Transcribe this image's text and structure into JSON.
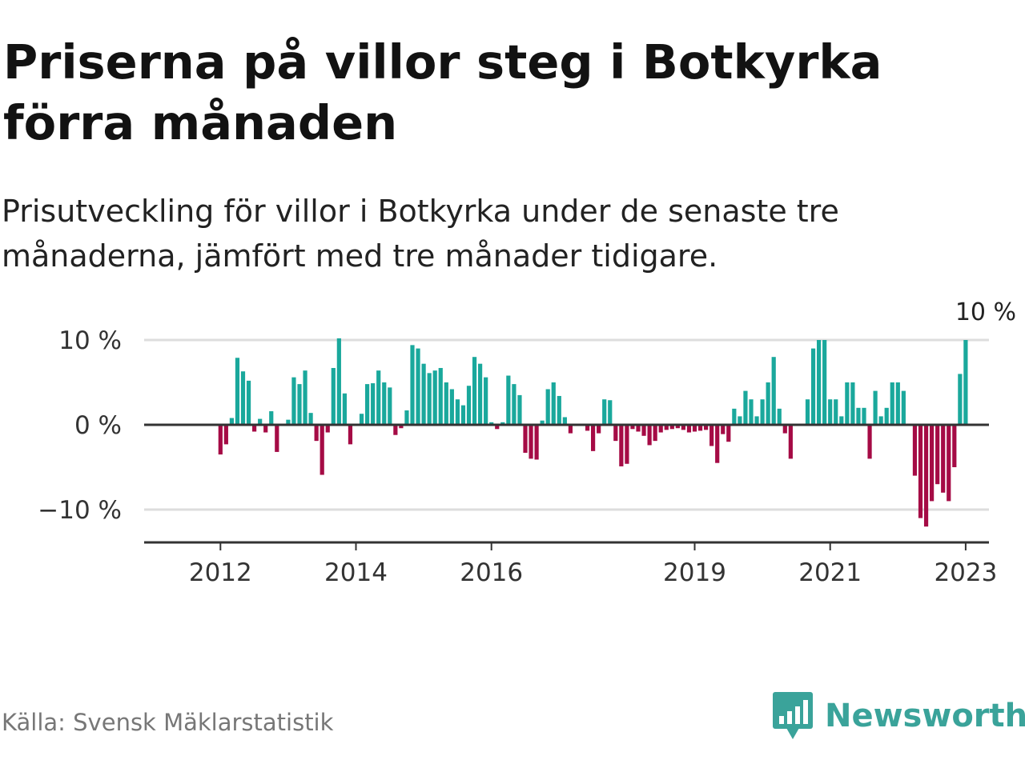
{
  "title": "Priserna på villor steg i Botkyrka förra månaden",
  "subtitle": "Prisutveckling för villor i Botkyrka under de senaste tre månaderna, jämfört med tre månader tidigare.",
  "source": "Källa: Svensk Mäklarstatistik",
  "brand": "Newsworthy",
  "colors": {
    "positive": "#1aa89c",
    "negative": "#a50b45",
    "grid": "#dddddd",
    "axis": "#333333",
    "brand": "#3aa39a"
  },
  "chart_data": {
    "type": "bar",
    "start": "2011-07",
    "ylim": [
      -14,
      11
    ],
    "yticks": [
      {
        "value": 10,
        "label": "10 %"
      },
      {
        "value": 0,
        "label": "0 %"
      },
      {
        "value": -10,
        "label": "−10 %"
      }
    ],
    "xticks": [
      {
        "index": 6,
        "label": "2012"
      },
      {
        "index": 30,
        "label": "2014"
      },
      {
        "index": 54,
        "label": "2016"
      },
      {
        "index": 90,
        "label": "2019"
      },
      {
        "index": 114,
        "label": "2021"
      },
      {
        "index": 138,
        "label": "2023"
      }
    ],
    "callout": {
      "index": 141,
      "label": "10 %"
    },
    "values": [
      0,
      0,
      0,
      0,
      0,
      0,
      -3.5,
      -2.3,
      0.8,
      7.9,
      6.3,
      5.2,
      -0.8,
      0.7,
      -0.9,
      1.6,
      -3.2,
      0,
      0.6,
      5.6,
      4.8,
      6.4,
      1.4,
      -1.9,
      -5.9,
      -0.9,
      6.7,
      10.2,
      3.7,
      -2.3,
      0,
      1.3,
      4.8,
      4.9,
      6.4,
      5.0,
      4.4,
      -1.2,
      -0.4,
      1.7,
      9.4,
      9.0,
      7.2,
      6.1,
      6.4,
      6.7,
      5.0,
      4.2,
      3.0,
      2.3,
      4.6,
      8.0,
      7.2,
      5.6,
      0.3,
      -0.5,
      0.3,
      5.8,
      4.8,
      3.5,
      -3.3,
      -4.0,
      -4.1,
      0.5,
      4.2,
      5.0,
      3.4,
      0.9,
      -1.0,
      0,
      0,
      -0.7,
      -3.1,
      -1.0,
      3.0,
      2.9,
      -1.9,
      -4.9,
      -4.6,
      -0.5,
      -0.8,
      -1.3,
      -2.4,
      -1.9,
      -0.9,
      -0.6,
      -0.5,
      -0.4,
      -0.6,
      -0.9,
      -0.8,
      -0.7,
      -0.6,
      -2.5,
      -4.5,
      -1.1,
      -2.0,
      1.9,
      1.0,
      4.0,
      3.0,
      1.0,
      3.0,
      5.0,
      8.0,
      1.9,
      -1.0,
      -4.0,
      0,
      0,
      3.0,
      9.0,
      10.0,
      10.0,
      3.0,
      3.0,
      1.0,
      5.0,
      5.0,
      2.0,
      2.0,
      -4.0,
      4.0,
      1.0,
      2.0,
      5.0,
      5.0,
      4.0,
      0,
      -6.0,
      -11.0,
      -12.0,
      -9.0,
      -7.0,
      -8.0,
      -9.0,
      -5.0,
      6.0,
      10.0
    ]
  }
}
